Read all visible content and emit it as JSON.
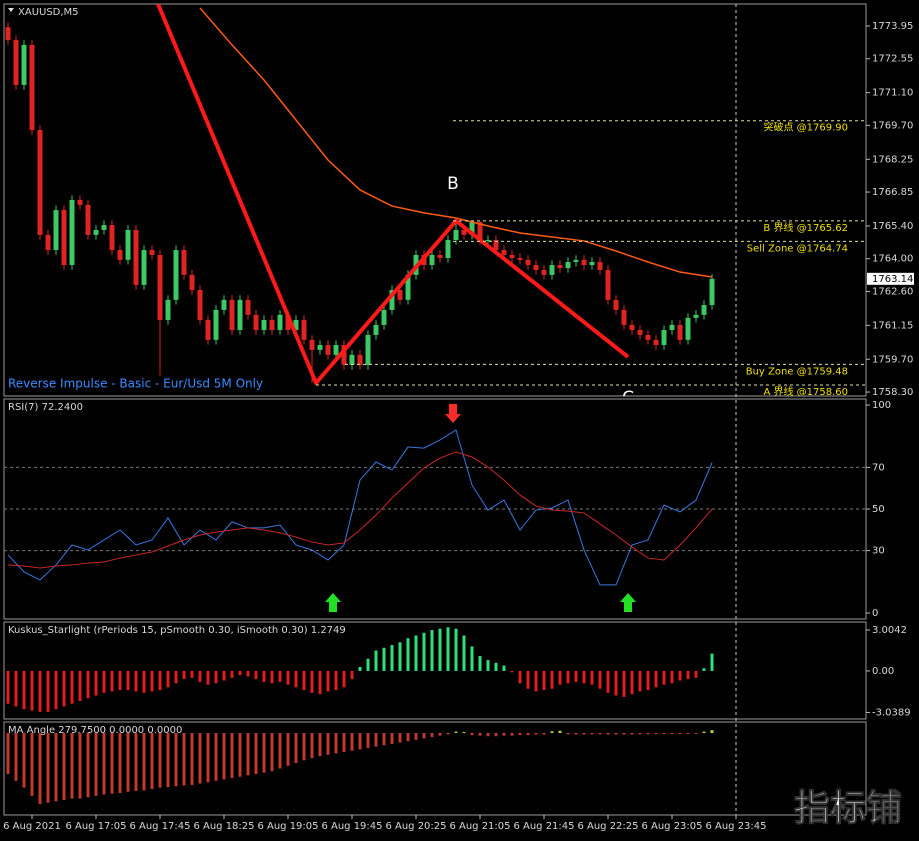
{
  "chart_data": [
    {
      "type": "candlestick",
      "title": "XAUUSD,M5",
      "note": "Reverse Impulse - Basic - Eur/Usd 5M Only",
      "wave_labels": [
        "B",
        "C"
      ],
      "xlim": [
        -0.5,
        107.25
      ],
      "xticks": [
        {
          "value": 3,
          "label": "6 Aug 2021"
        },
        {
          "value": 11,
          "label": "6 Aug 17:05"
        },
        {
          "value": 19,
          "label": "6 Aug 17:45"
        },
        {
          "value": 27,
          "label": "6 Aug 18:25"
        },
        {
          "value": 35,
          "label": "6 Aug 19:05"
        },
        {
          "value": 43,
          "label": "6 Aug 19:45"
        },
        {
          "value": 51,
          "label": "6 Aug 20:25"
        },
        {
          "value": 59,
          "label": "6 Aug 21:05"
        },
        {
          "value": 67,
          "label": "6 Aug 21:45"
        },
        {
          "value": 75,
          "label": "6 Aug 22:25"
        },
        {
          "value": 83,
          "label": "6 Aug 23:05"
        },
        {
          "value": 91,
          "label": "6 Aug 23:45"
        }
      ],
      "ylim": [
        1758.13,
        1774.89
      ],
      "yticks": [
        1773.95,
        1772.55,
        {
          "value": 1771.1,
          "label": "1771.10"
        },
        {
          "value": 1769.7,
          "label": "1769.70"
        },
        1768.25,
        1766.85,
        {
          "value": 1765.4,
          "label": "1765.40"
        },
        {
          "value": 1764,
          "label": "1764.00"
        },
        {
          "value": 1762.6,
          "label": "1762.60"
        },
        1761.15,
        {
          "value": 1759.7,
          "label": "1759.70"
        },
        {
          "value": 1758.3,
          "label": "1758.30"
        }
      ],
      "bull_color": "#3cc864",
      "bear_color": "#e02424",
      "open": [
        1773.9,
        1773.35,
        1771.43,
        1773.14,
        1769.5,
        1765.02,
        1764.37,
        1766.08,
        1763.73,
        1766.51,
        1766.3,
        1765.02,
        1765.23,
        1765.44,
        1764.37,
        1763.95,
        1765.23,
        1762.88,
        1764.37,
        1764.16,
        1761.38,
        1762.24,
        1764.37,
        1763.31,
        1762.66,
        1761.38,
        1760.53,
        1761.81,
        1762.24,
        1760.95,
        1762.24,
        1761.6,
        1760.95,
        1761.38,
        1760.95,
        1761.6,
        1760.95,
        1761.38,
        1760.53,
        1760.1,
        1760.31,
        1759.89,
        1760.31,
        1759.46,
        1759.89,
        1759.46,
        1760.74,
        1761.17,
        1761.81,
        1762.66,
        1762.24,
        1763.31,
        1764.16,
        1763.73,
        1764.16,
        1764.03,
        1764.8,
        1765.23,
        1765.02,
        1765.57,
        1764.8,
        1764.8,
        1764.37,
        1764.16,
        1764.03,
        1763.95,
        1763.73,
        1763.52,
        1763.31,
        1763.73,
        1763.6,
        1763.86,
        1763.95,
        1763.73,
        1763.86,
        1763.52,
        1762.24,
        1761.81,
        1761.17,
        1760.95,
        1760.74,
        1760.53,
        1760.31,
        1760.95,
        1761.17,
        1760.53,
        1761.47,
        1761.6,
        1762.02
      ],
      "high": [
        1774.1,
        1773.55,
        1773.34,
        1773.34,
        1769.7,
        1765.22,
        1766.28,
        1766.28,
        1766.71,
        1766.71,
        1766.5,
        1765.43,
        1765.64,
        1765.64,
        1764.57,
        1765.43,
        1765.43,
        1764.57,
        1764.57,
        1764.36,
        1762.44,
        1764.57,
        1764.57,
        1763.51,
        1762.86,
        1761.58,
        1762.01,
        1762.44,
        1762.44,
        1762.44,
        1762.44,
        1761.8,
        1761.58,
        1761.58,
        1761.8,
        1761.8,
        1761.58,
        1761.58,
        1760.73,
        1760.51,
        1760.51,
        1760.51,
        1760.51,
        1760.09,
        1760.09,
        1760.94,
        1761.37,
        1762.01,
        1762.86,
        1762.86,
        1763.51,
        1764.36,
        1764.36,
        1764.36,
        1764.36,
        1765.0,
        1765.62,
        1765.43,
        1765.6,
        1765.6,
        1765.0,
        1765.0,
        1764.57,
        1764.36,
        1764.23,
        1764.15,
        1763.93,
        1763.72,
        1763.93,
        1763.93,
        1764.06,
        1764.15,
        1764.15,
        1764.06,
        1764.06,
        1763.72,
        1762.44,
        1762.01,
        1761.37,
        1761.15,
        1760.94,
        1760.73,
        1761.15,
        1761.37,
        1761.37,
        1761.67,
        1761.8,
        1762.22,
        1763.34
      ],
      "low": [
        1773.15,
        1771.23,
        1771.23,
        1769.3,
        1764.82,
        1764.17,
        1764.17,
        1763.53,
        1763.53,
        1766.1,
        1764.82,
        1764.82,
        1765.03,
        1764.17,
        1763.75,
        1763.75,
        1762.68,
        1762.68,
        1763.96,
        1759.0,
        1761.18,
        1762.04,
        1763.11,
        1762.46,
        1761.18,
        1760.33,
        1760.33,
        1761.61,
        1760.75,
        1760.75,
        1761.4,
        1760.75,
        1760.75,
        1760.75,
        1760.75,
        1760.75,
        1760.75,
        1760.33,
        1758.69,
        1759.9,
        1759.69,
        1759.69,
        1759.26,
        1759.26,
        1759.26,
        1759.26,
        1760.54,
        1760.97,
        1761.61,
        1762.04,
        1762.04,
        1763.11,
        1763.53,
        1763.53,
        1763.83,
        1763.83,
        1764.6,
        1764.82,
        1764.82,
        1764.6,
        1764.6,
        1764.17,
        1763.96,
        1763.83,
        1763.75,
        1763.53,
        1763.32,
        1763.11,
        1763.11,
        1763.4,
        1763.4,
        1763.66,
        1763.53,
        1763.53,
        1763.32,
        1762.04,
        1761.61,
        1760.97,
        1760.75,
        1760.54,
        1760.33,
        1760.11,
        1760.11,
        1760.75,
        1760.33,
        1760.33,
        1761.27,
        1761.4,
        1761.82
      ],
      "close": [
        1773.35,
        1771.43,
        1773.14,
        1769.5,
        1765.02,
        1764.37,
        1766.08,
        1763.73,
        1766.51,
        1766.3,
        1765.02,
        1765.23,
        1765.44,
        1764.37,
        1763.95,
        1765.23,
        1762.88,
        1764.37,
        1764.16,
        1761.38,
        1762.24,
        1764.37,
        1763.31,
        1762.66,
        1761.38,
        1760.53,
        1761.81,
        1762.24,
        1760.95,
        1762.24,
        1761.6,
        1760.95,
        1761.38,
        1760.95,
        1761.6,
        1760.95,
        1761.38,
        1760.53,
        1760.1,
        1760.31,
        1759.89,
        1760.31,
        1759.46,
        1759.89,
        1759.46,
        1760.74,
        1761.17,
        1761.81,
        1762.66,
        1762.24,
        1763.31,
        1764.16,
        1763.73,
        1764.16,
        1764.03,
        1764.8,
        1765.23,
        1765.02,
        1765.57,
        1764.8,
        1764.8,
        1764.37,
        1764.16,
        1764.03,
        1763.95,
        1763.73,
        1763.52,
        1763.31,
        1763.73,
        1763.6,
        1763.86,
        1763.95,
        1763.73,
        1763.86,
        1763.52,
        1762.24,
        1761.81,
        1761.17,
        1760.95,
        1760.74,
        1760.53,
        1760.31,
        1760.95,
        1761.17,
        1760.53,
        1761.47,
        1761.6,
        1762.02,
        1763.14
      ],
      "ma": {
        "color": "#ff5a14",
        "x": [
          24,
          28,
          32,
          36,
          40,
          44,
          48,
          52,
          56,
          60,
          64,
          68,
          72,
          76,
          80,
          84,
          88
        ],
        "values": [
          1774.72,
          1773.14,
          1771.64,
          1769.93,
          1768.22,
          1766.94,
          1766.25,
          1765.96,
          1765.74,
          1765.4,
          1765.1,
          1764.93,
          1764.76,
          1764.33,
          1763.86,
          1763.43,
          1763.22
        ]
      },
      "zigzag": {
        "color": "#ff1a1a",
        "x": [
          18.75,
          38.5,
          56,
          77.5
        ],
        "values": [
          1774.89,
          1758.69,
          1765.62,
          1759.8
        ]
      },
      "levels": [
        {
          "label": "突破点 @1769.90",
          "value": 1769.9
        },
        {
          "label": "B 界线 @1765.62",
          "value": 1765.62
        },
        {
          "label": "Sell Zone @1764.74",
          "value": 1764.74
        },
        {
          "label": "Buy Zone @1759.48",
          "value": 1759.48
        },
        {
          "label": "A 界线 @1758.60",
          "value": 1758.6
        }
      ],
      "last_price": 1763.14
    },
    {
      "type": "line",
      "title": "RSI(7) 72.2400",
      "ylim": [
        -2.9,
        102.9
      ],
      "yticks": [
        100,
        70,
        50,
        30,
        0
      ],
      "x": [
        0,
        2,
        4,
        6,
        8,
        10,
        12,
        14,
        16,
        18,
        20,
        22,
        24,
        26,
        28,
        30,
        32,
        34,
        36,
        38,
        40,
        42,
        44,
        46,
        48,
        50,
        52,
        54,
        56,
        58,
        60,
        62,
        64,
        66,
        68,
        70,
        72,
        74,
        76,
        78,
        80,
        82,
        84,
        86,
        88
      ],
      "series": [
        {
          "color": "#3a78e0",
          "values": [
            27.9,
            19.7,
            15.9,
            23.1,
            32.7,
            30.3,
            35.1,
            39.9,
            32.7,
            35.1,
            45.7,
            32.7,
            39.9,
            35.1,
            43.8,
            40.9,
            40.9,
            42.3,
            32.7,
            30.3,
            25.5,
            32.7,
            63.9,
            72.6,
            68.8,
            79.8,
            79.3,
            83.2,
            88.0,
            61.5,
            49.5,
            54.3,
            39.9,
            49.5,
            50.5,
            54.3,
            30.3,
            13.5,
            13.5,
            32.7,
            35.1,
            51.9,
            48.6,
            54.3,
            72.24
          ]
        },
        {
          "color": "#c82828",
          "values": [
            23.1,
            22.6,
            21.6,
            22.6,
            23.1,
            24.0,
            24.5,
            26.4,
            27.9,
            29.3,
            32.2,
            35.1,
            37.5,
            38.9,
            39.9,
            40.9,
            39.9,
            38.5,
            36.5,
            34.1,
            32.7,
            33.7,
            39.9,
            47.1,
            55.3,
            62.5,
            69.7,
            74.5,
            77.4,
            75.0,
            70.2,
            63.9,
            56.7,
            51.4,
            49.5,
            49.0,
            48.1,
            42.8,
            37.5,
            31.7,
            26.4,
            25.5,
            32.7,
            40.9,
            50.0
          ]
        }
      ]
    },
    {
      "type": "bar",
      "title": "Kuskus_Starlight  (rPeriods 15, pSmooth 0.30, iSmooth 0.30)  1.2749",
      "ylim": [
        -3.52,
        3.59
      ],
      "yticks": [
        3.0042,
        {
          "value": 0,
          "label": "0.00"
        },
        -3.0389
      ],
      "positive_color": "#2ee07a",
      "negative_color": "#e01e1e",
      "values": [
        -2.4,
        -2.6,
        -2.8,
        -2.9,
        -3.0,
        -3.0,
        -2.8,
        -2.6,
        -2.4,
        -2.2,
        -2.0,
        -1.8,
        -1.6,
        -1.5,
        -1.4,
        -1.4,
        -1.5,
        -1.6,
        -1.5,
        -1.4,
        -1.2,
        -0.9,
        -0.6,
        -0.5,
        -0.8,
        -1.0,
        -0.9,
        -0.7,
        -0.5,
        -0.3,
        -0.4,
        -0.6,
        -0.8,
        -0.9,
        -0.8,
        -1.0,
        -1.2,
        -1.4,
        -1.6,
        -1.7,
        -1.5,
        -1.4,
        -1.2,
        -0.6,
        0.3,
        0.9,
        1.5,
        1.7,
        1.9,
        2.1,
        2.4,
        2.6,
        2.8,
        3.0,
        3.1,
        3.2,
        3.1,
        2.6,
        1.8,
        1.1,
        0.8,
        0.6,
        0.4,
        -0.1,
        -0.9,
        -1.3,
        -1.5,
        -1.4,
        -1.3,
        -1.0,
        -0.9,
        -0.8,
        -0.9,
        -1.0,
        -1.3,
        -1.6,
        -1.8,
        -1.9,
        -1.7,
        -1.5,
        -1.4,
        -1.2,
        -1.0,
        -0.9,
        -0.7,
        -0.6,
        -0.5,
        0.2,
        1.2749
      ]
    },
    {
      "type": "bar",
      "title": "MA Angle 279.7500 0.0000 0.0000",
      "ylim": [
        -300,
        40
      ],
      "yticks": [],
      "positive_color": "#b4e032",
      "negative_color": "#c0392b",
      "values": [
        -150,
        -175,
        -200,
        -230,
        -260,
        -255,
        -250,
        -245,
        -240,
        -240,
        -235,
        -230,
        -225,
        -222,
        -220,
        -215,
        -212,
        -210,
        -205,
        -200,
        -198,
        -195,
        -192,
        -190,
        -185,
        -180,
        -175,
        -170,
        -165,
        -160,
        -155,
        -150,
        -145,
        -140,
        -130,
        -120,
        -110,
        -100,
        -92,
        -85,
        -80,
        -75,
        -70,
        -65,
        -60,
        -55,
        -50,
        -45,
        -40,
        -35,
        -30,
        -25,
        -20,
        -15,
        -10,
        -5,
        5,
        3,
        -8,
        -10,
        -12,
        -12,
        -10,
        -10,
        -8,
        -8,
        -6,
        -6,
        6,
        8,
        -5,
        -6,
        -6,
        -5,
        -5,
        -6,
        -6,
        -6,
        -6,
        -5,
        -5,
        -4,
        -4,
        -4,
        -4,
        -3,
        -3,
        5,
        10
      ]
    }
  ],
  "watermark": "指标铺"
}
